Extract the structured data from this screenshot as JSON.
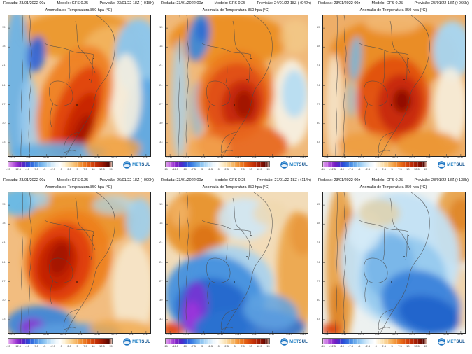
{
  "subtitle": "Anomalia de Temperatura 850 hpa (°C)",
  "panels": [
    {
      "rodada": "Rodada: 23/01/2022 00z",
      "modelo": "Modelo: GFS 0.25",
      "previsao": "Previsão: 23/01/22 18Z (+018h)"
    },
    {
      "rodada": "Rodada: 23/01/2022 00z",
      "modelo": "Modelo: GFS 0.25",
      "previsao": "Previsão: 24/01/22 18Z (+042h)"
    },
    {
      "rodada": "Rodada: 23/01/2022 00z",
      "modelo": "Modelo: GFS 0.25",
      "previsao": "Previsão: 25/01/22 18Z (+066h)"
    },
    {
      "rodada": "Rodada: 23/01/2022 00z",
      "modelo": "Modelo: GFS 0.25",
      "previsao": "Previsão: 26/01/22 18Z (+090h)"
    },
    {
      "rodada": "Rodada: 23/01/2022 00z",
      "modelo": "Modelo: GFS 0.25",
      "previsao": "Previsão: 27/01/22 18Z (+114h)"
    },
    {
      "rodada": "Rodada: 23/01/2022 00z",
      "modelo": "Modelo: GFS 0.25",
      "previsao": "Previsão: 28/01/22 18Z (+138h)"
    }
  ],
  "colorbar": {
    "labels": [
      "-15",
      "-12.5",
      "-10",
      "-7.5",
      "-5",
      "-2.5",
      "0",
      "2.5",
      "5",
      "7.5",
      "10",
      "12.5",
      "15"
    ]
  },
  "axis": {
    "lat": [
      "15",
      "18",
      "21",
      "24",
      "27",
      "30",
      "33"
    ],
    "lon": [
      "75W",
      "70W",
      "65W",
      "60W",
      "55W",
      "50W",
      "45W",
      "40W",
      "35W"
    ]
  },
  "logo": {
    "met": "MET",
    "sul": "SUL"
  },
  "colors": {
    "cold_extreme": "#6f1dc0",
    "warm_extreme": "#530601",
    "brand_blue": "#1a72c0"
  }
}
